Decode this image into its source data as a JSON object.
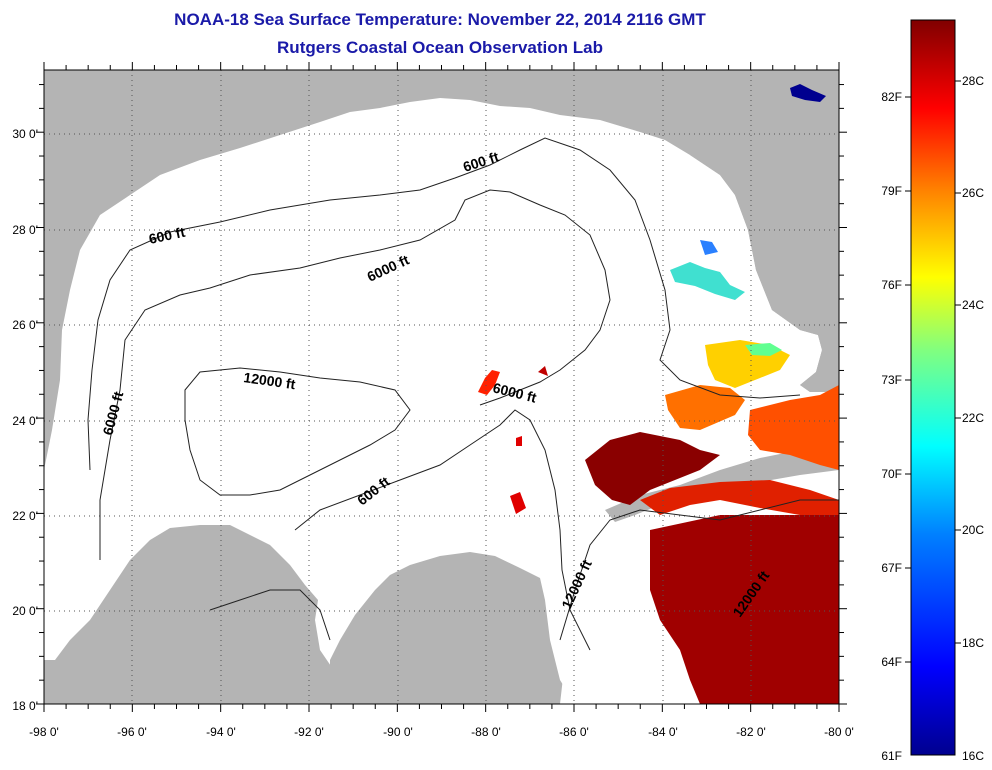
{
  "header": {
    "title": "NOAA-18 Sea Surface Temperature:  November 22, 2014 2116 GMT",
    "subtitle": "Rutgers Coastal Ocean Observation Lab"
  },
  "map": {
    "region": "Gulf of Mexico",
    "lon_range": [
      -98,
      -80
    ],
    "lat_range": [
      18,
      31
    ],
    "lon_ticks": [
      "-98 0'",
      "-96 0'",
      "-94 0'",
      "-92 0'",
      "-90 0'",
      "-88 0'",
      "-86 0'",
      "-84 0'",
      "-82 0'",
      "-80 0'"
    ],
    "lat_ticks": [
      "18 0'",
      "20 0'",
      "22 0'",
      "24 0'",
      "26 0'",
      "28 0'",
      "30 0'"
    ],
    "grid": "dotted",
    "land_color": "#b4b4b4",
    "water_color": "#ffffff",
    "contour_labels": [
      "600 ft",
      "600 ft",
      "6000 ft",
      "6000 ft",
      "12000 ft",
      "6000 ft",
      "600 ft",
      "12000 ft",
      "12000 ft"
    ]
  },
  "colorbar": {
    "f_labels": [
      "82F",
      "79F",
      "76F",
      "73F",
      "70F",
      "67F",
      "64F",
      "61F"
    ],
    "c_labels": [
      "28C",
      "26C",
      "24C",
      "22C",
      "20C",
      "18C",
      "16C"
    ],
    "min_c": 16,
    "max_c": 29.5,
    "colors": [
      "#00008f",
      "#0000ff",
      "#0080ff",
      "#00ffff",
      "#80ff80",
      "#ffff00",
      "#ff8000",
      "#ff0000",
      "#800000"
    ]
  }
}
